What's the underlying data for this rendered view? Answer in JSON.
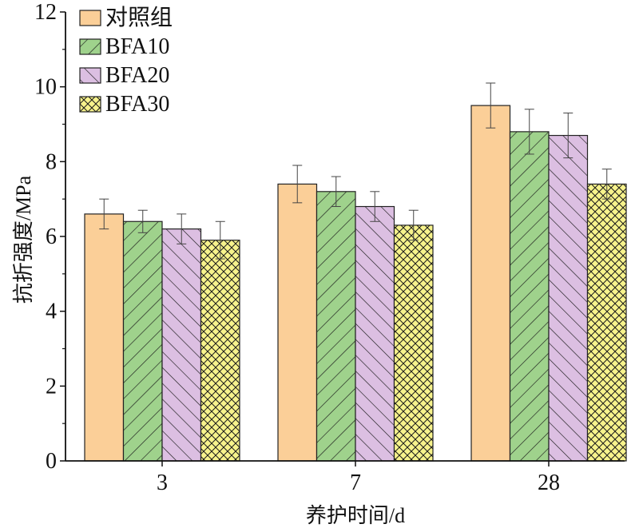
{
  "chart_data": {
    "type": "bar",
    "xlabel": "养护时间/d",
    "ylabel": "抗折强度/MPa",
    "categories": [
      "3",
      "7",
      "28"
    ],
    "ylim": [
      0,
      12
    ],
    "yticks": [
      "0",
      "2",
      "4",
      "6",
      "8",
      "10",
      "12"
    ],
    "grid": false,
    "legend_position": "top-left",
    "series": [
      {
        "name": "对照组",
        "values": [
          6.6,
          7.4,
          9.5
        ],
        "errors": [
          0.4,
          0.5,
          0.6
        ],
        "color": "#fbcf98",
        "pattern": "solid"
      },
      {
        "name": "BFA10",
        "values": [
          6.4,
          7.2,
          8.8
        ],
        "errors": [
          0.3,
          0.4,
          0.6
        ],
        "color": "#9fd28c",
        "pattern": "diagonal-forward"
      },
      {
        "name": "BFA20",
        "values": [
          6.2,
          6.8,
          8.7
        ],
        "errors": [
          0.4,
          0.4,
          0.6
        ],
        "color": "#dcbfe2",
        "pattern": "diagonal-backward"
      },
      {
        "name": "BFA30",
        "values": [
          5.9,
          6.3,
          7.4
        ],
        "errors": [
          0.5,
          0.4,
          0.4
        ],
        "color": "#f7f38c",
        "pattern": "crosshatch"
      }
    ]
  }
}
